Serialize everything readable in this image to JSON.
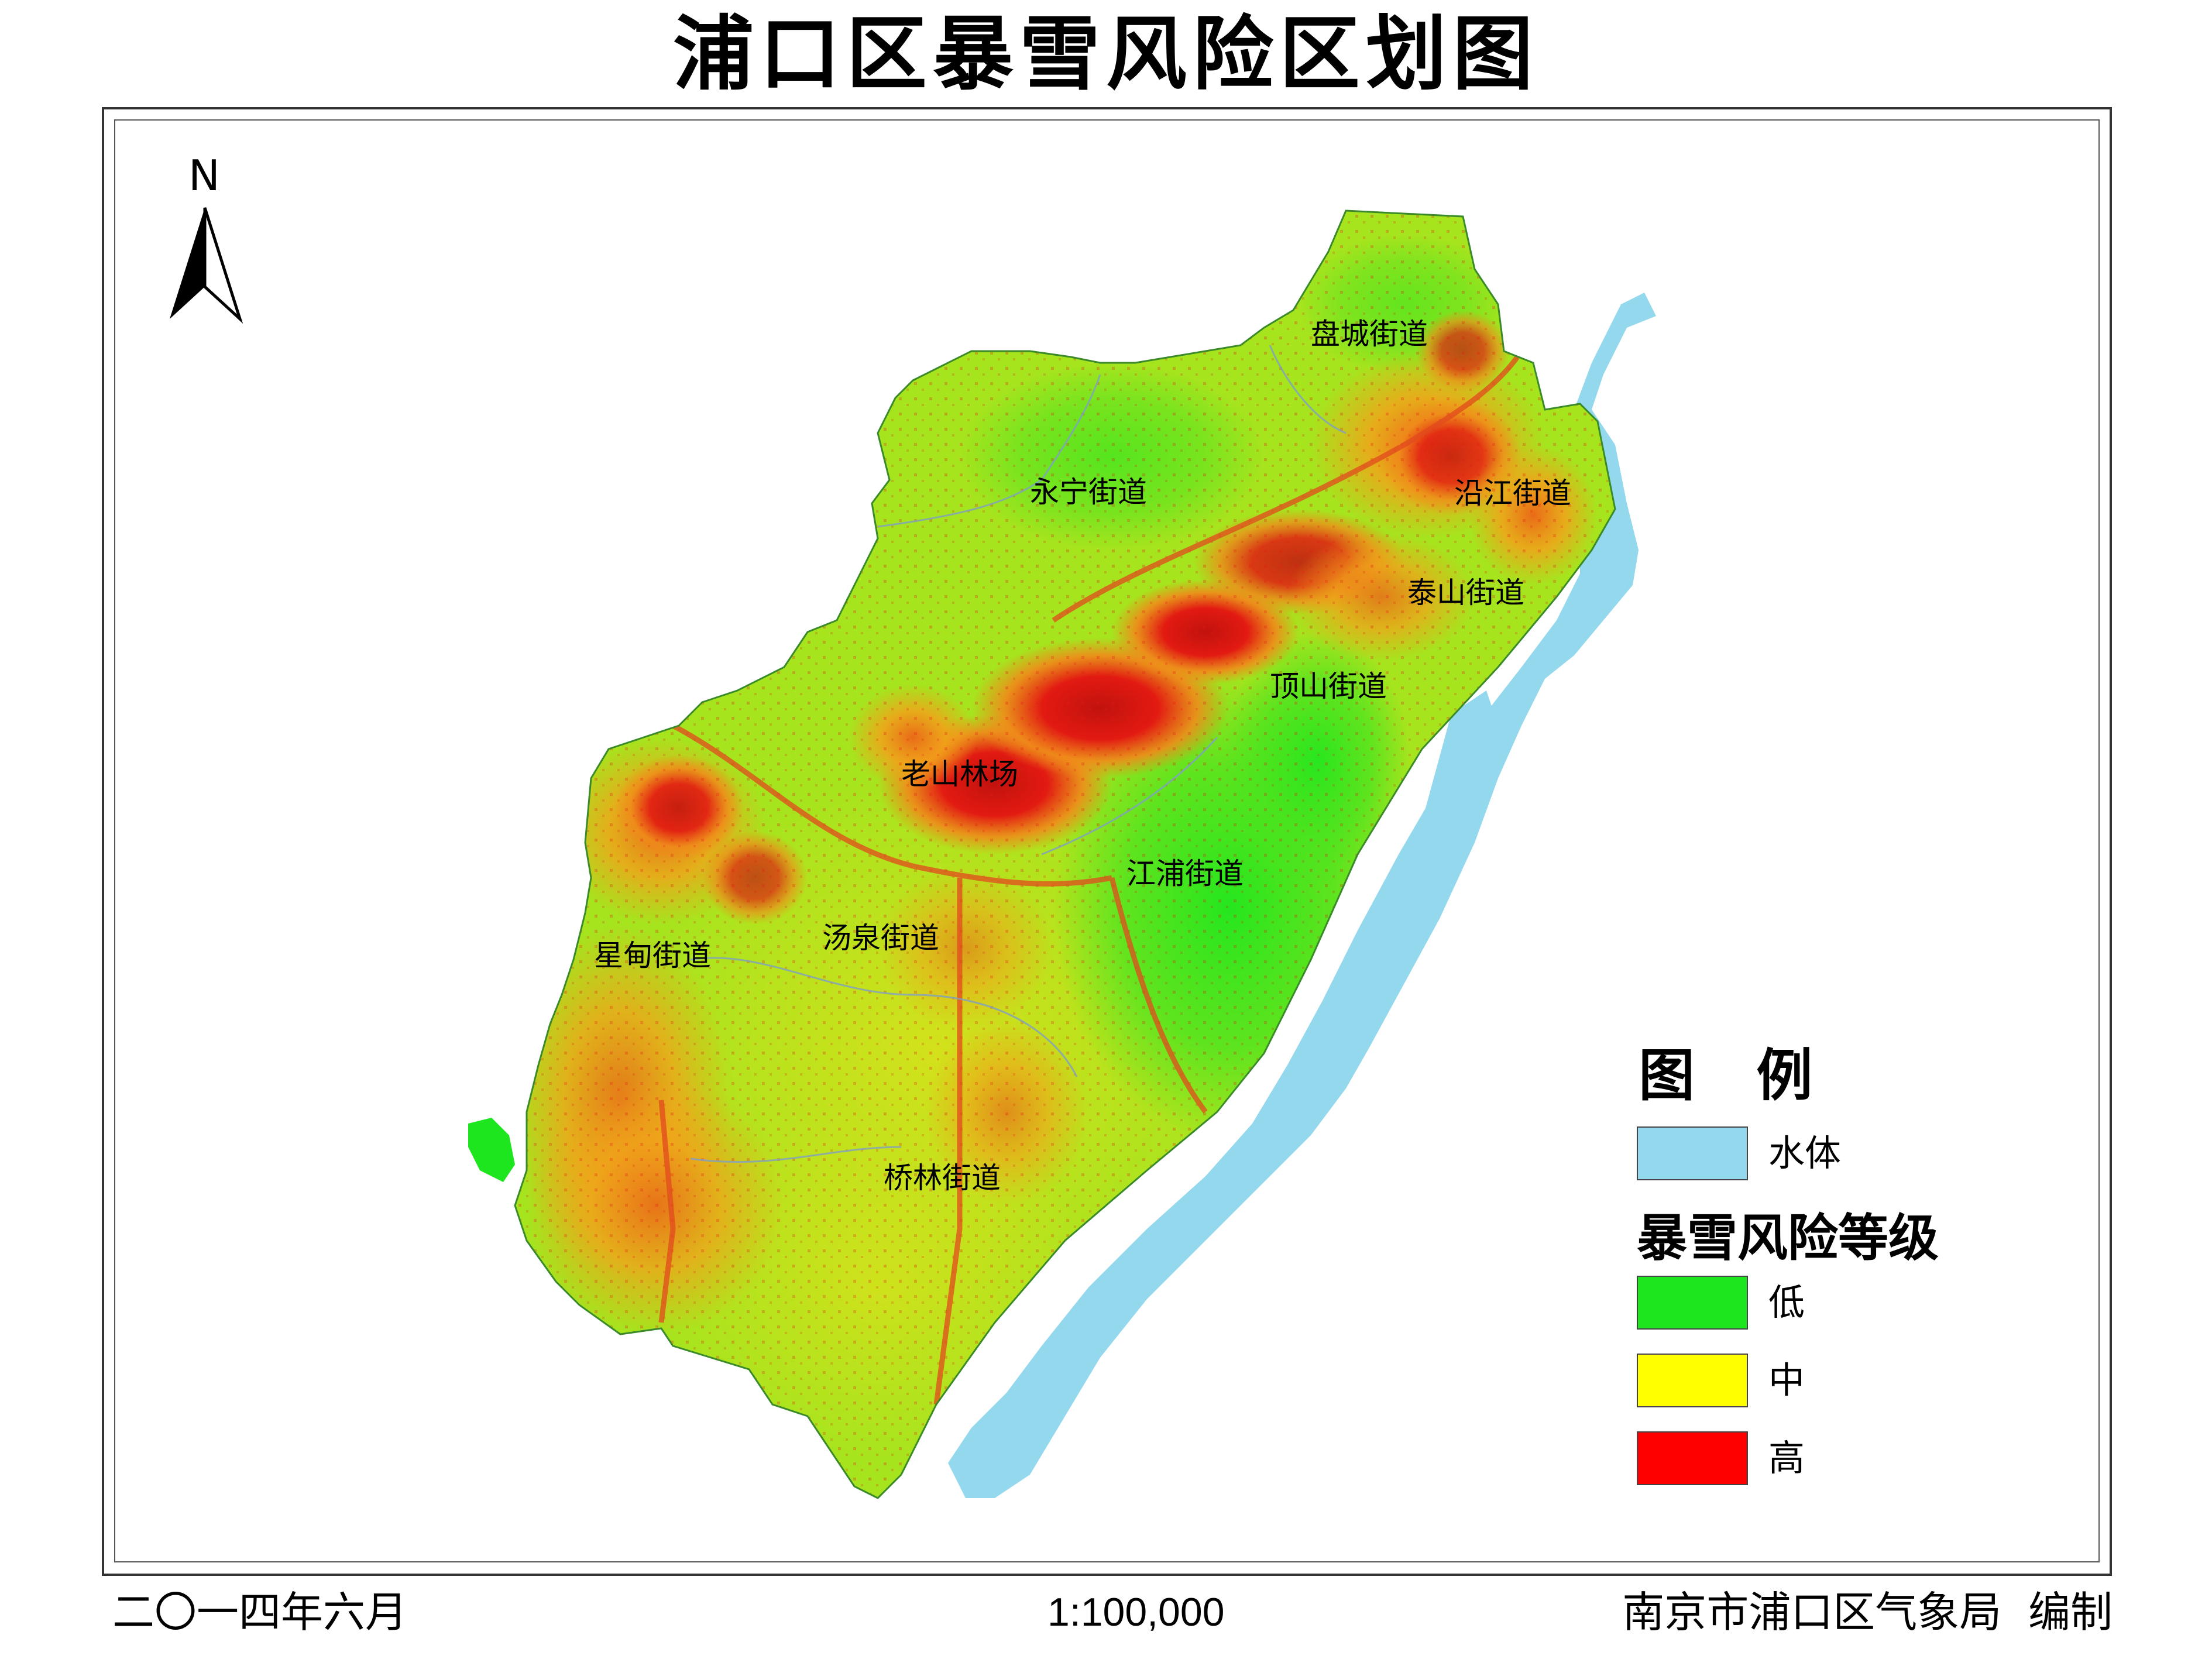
{
  "title": "浦口区暴雪风险区划图",
  "north_label": "N",
  "places": [
    {
      "name": "盘城街道"
    },
    {
      "name": "永宁街道"
    },
    {
      "name": "沿江街道"
    },
    {
      "name": "泰山街道"
    },
    {
      "name": "顶山街道"
    },
    {
      "name": "老山林场"
    },
    {
      "name": "江浦街道"
    },
    {
      "name": "星甸街道"
    },
    {
      "name": "汤泉街道"
    },
    {
      "name": "桥林街道"
    }
  ],
  "legend": {
    "title": "图  例",
    "water_label": "水体",
    "risk_title": "暴雪风险等级",
    "levels": [
      {
        "label": "低",
        "color": "#1ee61e"
      },
      {
        "label": "中",
        "color": "#ffff00"
      },
      {
        "label": "高",
        "color": "#ff0000"
      }
    ],
    "water_color": "#94d8ee"
  },
  "footer": {
    "date": "二〇一四年六月",
    "scale": "1:100,000",
    "publisher": "南京市浦口区气象局  编制"
  },
  "colors": {
    "low": "#1ee61e",
    "low_mid": "#9ee81a",
    "mid": "#e0e81a",
    "mid_high": "#f2a21a",
    "high": "#e21a12",
    "water": "#94d8ee"
  }
}
